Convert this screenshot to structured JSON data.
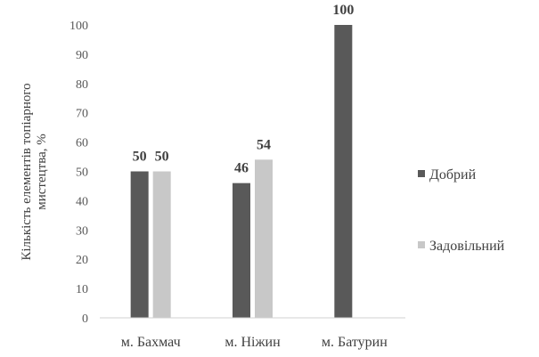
{
  "chart_data": {
    "type": "bar",
    "ylabel": "Кількість елементів топіарного мистецтва, %",
    "ylabel_lines": [
      "Кількість елементів топіарного",
      "мистецтва, %"
    ],
    "ylim": [
      0,
      100
    ],
    "yticks": [
      0,
      10,
      20,
      30,
      40,
      50,
      60,
      70,
      80,
      90,
      100
    ],
    "grid": false,
    "legend_position": "right",
    "categories": [
      "м. Бахмач",
      "м. Ніжин",
      "м. Батурин"
    ],
    "series": [
      {
        "name": "Добрий",
        "color": "#595959",
        "values": [
          50,
          46,
          100
        ]
      },
      {
        "name": "Задовільний",
        "color": "#c8c8c8",
        "values": [
          50,
          54,
          null
        ]
      }
    ],
    "data_labels": [
      [
        "50",
        "46",
        "100"
      ],
      [
        "50",
        "54",
        ""
      ]
    ]
  }
}
